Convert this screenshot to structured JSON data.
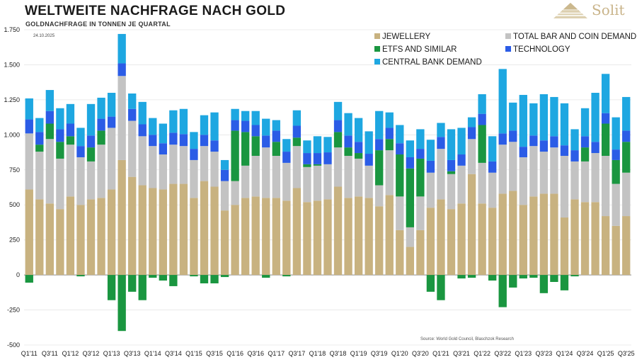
{
  "header": {
    "title": "WELTWEITE NACHFRAGE NACH GOLD",
    "subtitle": "GOLDNACHFRAGE IN TONNEN JE QUARTAL",
    "logo_text": "Solit",
    "date": "24.10.2025",
    "source": "Source: World Gold Council, Blaschzok Research"
  },
  "chart_data": {
    "type": "bar",
    "stacked": true,
    "title": "WELTWEITE NACHFRAGE NACH GOLD",
    "subtitle": "GOLDNACHFRAGE IN TONNEN JE QUARTAL",
    "ylabel": "Tonnen",
    "ylim": [
      -500,
      1750
    ],
    "yticks": [
      -500,
      -250,
      0,
      250,
      500,
      750,
      1000,
      1250,
      1500,
      1750
    ],
    "ytick_labels": [
      "-500",
      "-250",
      "0",
      "250",
      "500",
      "750",
      "1.000",
      "1.250",
      "1.500",
      "1.750"
    ],
    "legend_position": "top-right",
    "categories": [
      "Q1'11",
      "Q2'11",
      "Q3'11",
      "Q4'11",
      "Q1'12",
      "Q2'12",
      "Q3'12",
      "Q4'12",
      "Q1'13",
      "Q2'13",
      "Q3'13",
      "Q4'13",
      "Q1'14",
      "Q2'14",
      "Q3'14",
      "Q4'14",
      "Q1'15",
      "Q2'15",
      "Q3'15",
      "Q4'15",
      "Q1'16",
      "Q2'16",
      "Q3'16",
      "Q4'16",
      "Q1'17",
      "Q2'17",
      "Q3'17",
      "Q4'17",
      "Q1'18",
      "Q2'18",
      "Q3'18",
      "Q4'18",
      "Q1'19",
      "Q2'19",
      "Q3'19",
      "Q4'19",
      "Q1'20",
      "Q2'20",
      "Q3'20",
      "Q4'20",
      "Q1'21",
      "Q2'21",
      "Q3'21",
      "Q4'21",
      "Q1'22",
      "Q2'22",
      "Q3'22",
      "Q4'22",
      "Q1'23",
      "Q2'23",
      "Q3'23",
      "Q4'23",
      "Q1'24",
      "Q2'24",
      "Q3'24",
      "Q4'24",
      "Q1'25",
      "Q2'25",
      "Q3'25"
    ],
    "xtick_labels": [
      "Q1'11",
      "Q3'11",
      "Q1'12",
      "Q3'12",
      "Q1'13",
      "Q3'13",
      "Q1'14",
      "Q3'14",
      "Q1'15",
      "Q3'15",
      "Q1'16",
      "Q3'16",
      "Q1'17",
      "Q3'17",
      "Q1'18",
      "Q3'18",
      "Q1'19",
      "Q3'19",
      "Q1'20",
      "Q3'20",
      "Q1'21",
      "Q3'21",
      "Q1'22",
      "Q3'22",
      "Q1'23",
      "Q3'23",
      "Q1'24",
      "Q3'24",
      "Q1'25",
      "Q3'25"
    ],
    "series": [
      {
        "name": "JEWELLERY",
        "color": "#c8b280",
        "values": [
          610,
          540,
          510,
          470,
          560,
          500,
          540,
          550,
          610,
          820,
          700,
          640,
          620,
          610,
          650,
          650,
          550,
          670,
          630,
          460,
          500,
          550,
          560,
          550,
          550,
          530,
          620,
          520,
          530,
          540,
          630,
          550,
          560,
          550,
          490,
          570,
          320,
          200,
          320,
          480,
          540,
          470,
          510,
          720,
          510,
          480,
          580,
          600,
          500,
          560,
          580,
          580,
          410,
          540,
          520,
          520,
          420,
          350,
          420
        ]
      },
      {
        "name": "TOTAL BAR AND COIN DEMAND",
        "color": "#c3c3c3",
        "values": [
          400,
          340,
          460,
          360,
          370,
          340,
          270,
          380,
          440,
          600,
          400,
          350,
          300,
          250,
          280,
          270,
          270,
          250,
          250,
          210,
          170,
          230,
          290,
          360,
          300,
          270,
          300,
          250,
          250,
          250,
          280,
          300,
          270,
          230,
          150,
          320,
          240,
          140,
          240,
          250,
          360,
          250,
          270,
          250,
          290,
          250,
          350,
          350,
          340,
          360,
          300,
          330,
          440,
          270,
          290,
          350,
          430,
          300,
          310
        ]
      },
      {
        "name": "ETFS AND SIMILAR",
        "color": "#1a9640",
        "values": [
          -55,
          50,
          110,
          120,
          60,
          -10,
          100,
          100,
          -180,
          -400,
          -120,
          -180,
          -20,
          -40,
          -80,
          0,
          -10,
          -60,
          -60,
          -15,
          360,
          240,
          140,
          -20,
          100,
          -10,
          60,
          20,
          10,
          0,
          110,
          60,
          40,
          0,
          250,
          80,
          300,
          420,
          270,
          -120,
          -180,
          20,
          -25,
          -20,
          270,
          -40,
          -230,
          -90,
          -25,
          -20,
          -130,
          -50,
          -110,
          -10,
          100,
          0,
          230,
          170,
          220
        ]
      },
      {
        "name": "TECHNOLOGY",
        "color": "#2b5ce6",
        "values": [
          100,
          90,
          90,
          90,
          90,
          80,
          85,
          85,
          80,
          90,
          85,
          85,
          80,
          80,
          85,
          85,
          80,
          80,
          80,
          80,
          75,
          80,
          80,
          85,
          80,
          80,
          85,
          80,
          80,
          85,
          85,
          85,
          80,
          85,
          80,
          80,
          80,
          80,
          70,
          85,
          85,
          80,
          80,
          85,
          80,
          80,
          80,
          80,
          75,
          75,
          80,
          80,
          75,
          80,
          80,
          80,
          75,
          75,
          80
        ]
      },
      {
        "name": "CENTRAL BANK DEMAND",
        "color": "#1ea7e1",
        "values": [
          150,
          100,
          150,
          150,
          140,
          130,
          225,
          150,
          170,
          210,
          110,
          160,
          120,
          140,
          160,
          180,
          120,
          140,
          200,
          70,
          80,
          70,
          100,
          120,
          75,
          90,
          110,
          90,
          120,
          110,
          130,
          160,
          170,
          160,
          200,
          110,
          130,
          120,
          140,
          150,
          100,
          220,
          190,
          70,
          140,
          180,
          460,
          200,
          370,
          230,
          330,
          280,
          300,
          150,
          200,
          350,
          280,
          230,
          240
        ]
      }
    ]
  }
}
